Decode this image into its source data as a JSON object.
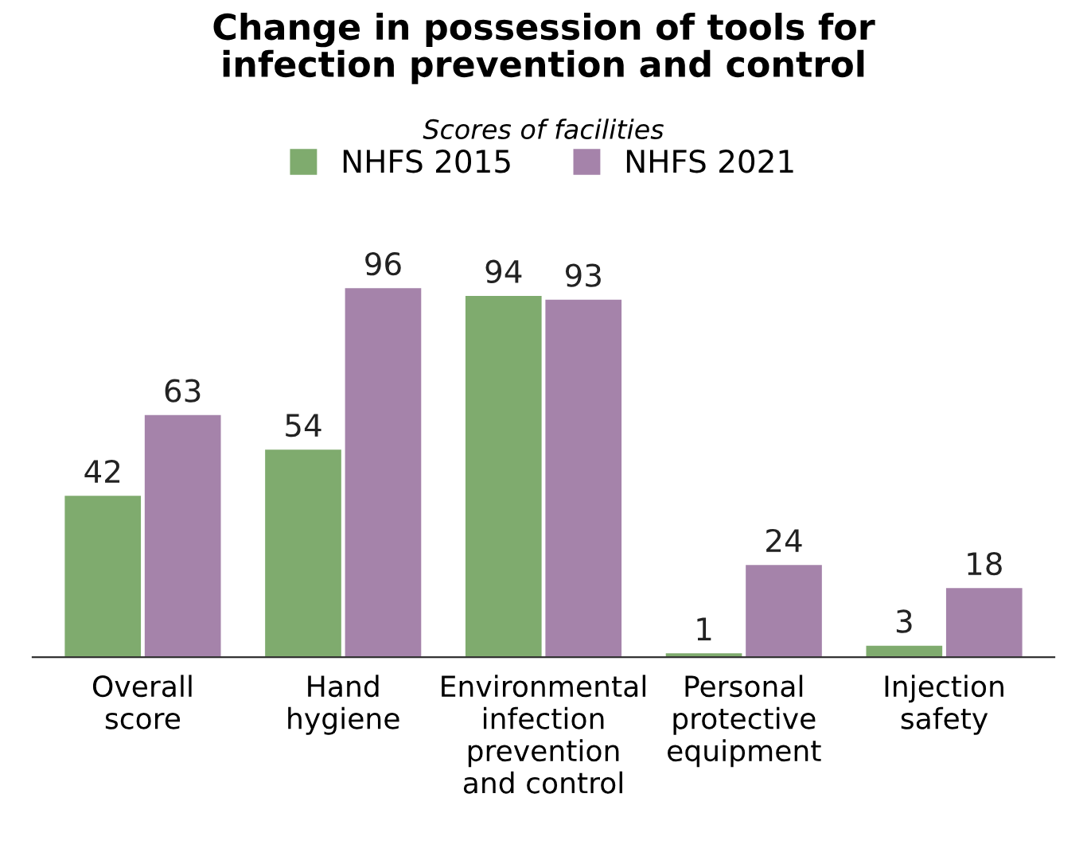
{
  "chart_data": {
    "type": "bar",
    "title": "Change in possession of tools for\ninfection prevention and control",
    "subtitle": "Scores of facilities",
    "categories": [
      "Overall\nscore",
      "Hand\nhygiene",
      "Environmental\ninfection\nprevention\nand control",
      "Personal\nprotective\nequipment",
      "Injection\nsafety"
    ],
    "series": [
      {
        "name": "NHFS 2015",
        "color": "#7fab6e",
        "values": [
          42,
          54,
          94,
          1,
          3
        ]
      },
      {
        "name": "NHFS 2021",
        "color": "#a583aa",
        "values": [
          63,
          96,
          93,
          24,
          18
        ]
      }
    ],
    "data_labels": true,
    "legend": "top",
    "grid": false
  }
}
